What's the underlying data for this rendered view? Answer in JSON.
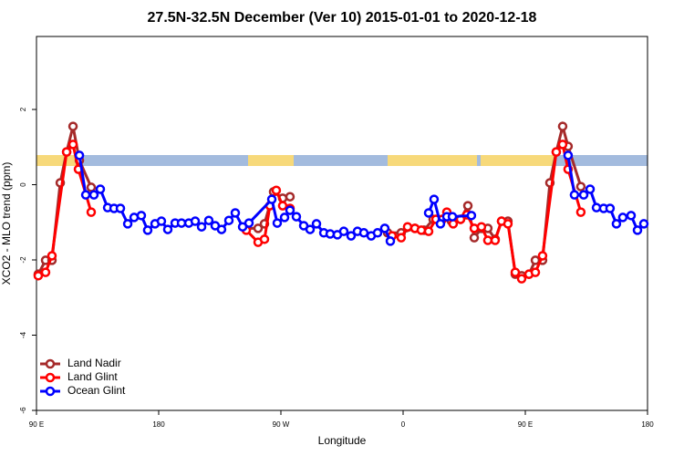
{
  "chart_data": {
    "type": "line",
    "title": "27.5N-32.5N December (Ver 10)   2015-01-01 to 2020-12-18",
    "xlabel": "Longitude",
    "ylabel": "XCO2 - MLO trend (ppm)",
    "xlim": [
      90,
      540
    ],
    "ylim": [
      -6,
      3.94
    ],
    "xticks": [
      {
        "value": 90,
        "label": "90 E"
      },
      180,
      {
        "value": 270,
        "label": "90 W"
      },
      {
        "value": 360,
        "label": "0"
      },
      {
        "value": 450,
        "label": "90 E"
      },
      {
        "value": 540,
        "label": "180"
      }
    ],
    "yticks": [
      -6,
      -4,
      -2,
      0,
      2
    ],
    "grid": false,
    "legend": "bottom-left",
    "series": [
      {
        "name": "Land Nadir",
        "color": "#a52a2a",
        "x": [
          91.3,
          96.7,
          101.4,
          107.5,
          112.2,
          116.9,
          121.6,
          130.3,
          null,
          244.5,
          253.2,
          257.9,
          264.6,
          271.3,
          276.7,
          null,
          348.6,
          358.6,
          368.7,
          375.4,
          382.1,
          388.9,
          395.6,
          402.3,
          407.7,
          412.4,
          417.7,
          422.4,
          427.8,
          432.5,
          437.2,
          442.6,
          447.3,
          452.7,
          457.4,
          462.7,
          468.1,
          472.8,
          477.5,
          481.5,
          490.9
        ],
        "values": [
          -2.38,
          -2.01,
          -2.01,
          0.05,
          0.87,
          1.55,
          0.65,
          -0.07,
          null,
          -1.16,
          -1.16,
          -1.04,
          -0.19,
          -0.36,
          -0.32,
          null,
          -1.28,
          -1.28,
          -1.16,
          -1.21,
          -0.92,
          -0.92,
          -0.97,
          -0.92,
          -0.56,
          -1.41,
          -1.16,
          -1.16,
          -1.45,
          -0.97,
          -0.97,
          -2.38,
          -2.42,
          -2.38,
          -2.01,
          -2.01,
          0.05,
          0.87,
          1.55,
          1.02,
          -0.05
        ]
      },
      {
        "name": "Land Glint",
        "color": "#ff0000",
        "x": [
          91.3,
          96.7,
          101.4,
          112.2,
          116.9,
          120.9,
          130.3,
          null,
          244.5,
          253.2,
          257.9,
          261.9,
          266.6,
          271.3,
          276.7,
          null,
          351.9,
          358.6,
          363.3,
          368.7,
          373.4,
          378.8,
          384.2,
          388.9,
          392.2,
          396.9,
          402.3,
          407.0,
          412.4,
          417.7,
          422.4,
          427.8,
          432.5,
          437.2,
          442.6,
          447.3,
          452.7,
          457.4,
          462.7,
          472.8,
          477.5,
          481.5,
          490.9
        ],
        "values": [
          -2.42,
          -2.33,
          -1.89,
          0.87,
          1.07,
          0.41,
          -0.73,
          null,
          -1.21,
          -1.53,
          -1.45,
          -0.56,
          -0.15,
          -0.56,
          -0.63,
          null,
          -1.36,
          -1.41,
          -1.12,
          -1.16,
          -1.21,
          -1.24,
          -0.92,
          -0.92,
          -0.73,
          -1.04,
          -0.92,
          -0.8,
          -1.16,
          -1.12,
          -1.48,
          -1.48,
          -0.97,
          -1.04,
          -2.33,
          -2.5,
          -2.38,
          -2.33,
          -1.89,
          0.87,
          1.07,
          0.41,
          -0.73
        ]
      },
      {
        "name": "Ocean Glint",
        "color": "#0000ff",
        "x": [
          121.6,
          126.3,
          132.3,
          137.0,
          142.4,
          147.1,
          151.8,
          157.2,
          161.9,
          167.2,
          171.9,
          177.3,
          182.0,
          186.7,
          192.1,
          196.8,
          202.2,
          206.9,
          211.6,
          216.9,
          221.6,
          226.3,
          231.7,
          236.4,
          241.8,
          246.5,
          263.3,
          267.3,
          272.7,
          276.7,
          281.4,
          286.8,
          291.5,
          296.2,
          301.6,
          306.3,
          311.6,
          316.3,
          321.7,
          326.4,
          331.1,
          336.5,
          341.2,
          346.5,
          350.6,
          null,
          378.8,
          382.8,
          387.5,
          392.2,
          396.3,
          410.3,
          null,
          481.5,
          486.2,
          493.0,
          497.7,
          502.4,
          507.7,
          512.4,
          517.1,
          521.8,
          527.9,
          532.6,
          537.3
        ],
        "values": [
          0.78,
          -0.27,
          -0.27,
          -0.12,
          -0.61,
          -0.63,
          -0.63,
          -1.04,
          -0.87,
          -0.82,
          -1.21,
          -1.04,
          -0.97,
          -1.19,
          -1.02,
          -1.02,
          -1.02,
          -0.97,
          -1.12,
          -0.95,
          -1.09,
          -1.19,
          -0.95,
          -0.75,
          -1.12,
          -1.02,
          -0.39,
          -1.02,
          -0.87,
          -0.68,
          -0.85,
          -1.09,
          -1.19,
          -1.04,
          -1.28,
          -1.31,
          -1.33,
          -1.24,
          -1.36,
          -1.24,
          -1.28,
          -1.36,
          -1.28,
          -1.16,
          -1.5,
          null,
          -0.75,
          -0.39,
          -1.04,
          -0.85,
          -0.85,
          -0.82,
          null,
          0.78,
          -0.27,
          -0.27,
          -0.12,
          -0.61,
          -0.63,
          -0.63,
          -1.04,
          -0.87,
          -0.82,
          -1.21,
          -1.04
        ]
      }
    ]
  }
}
